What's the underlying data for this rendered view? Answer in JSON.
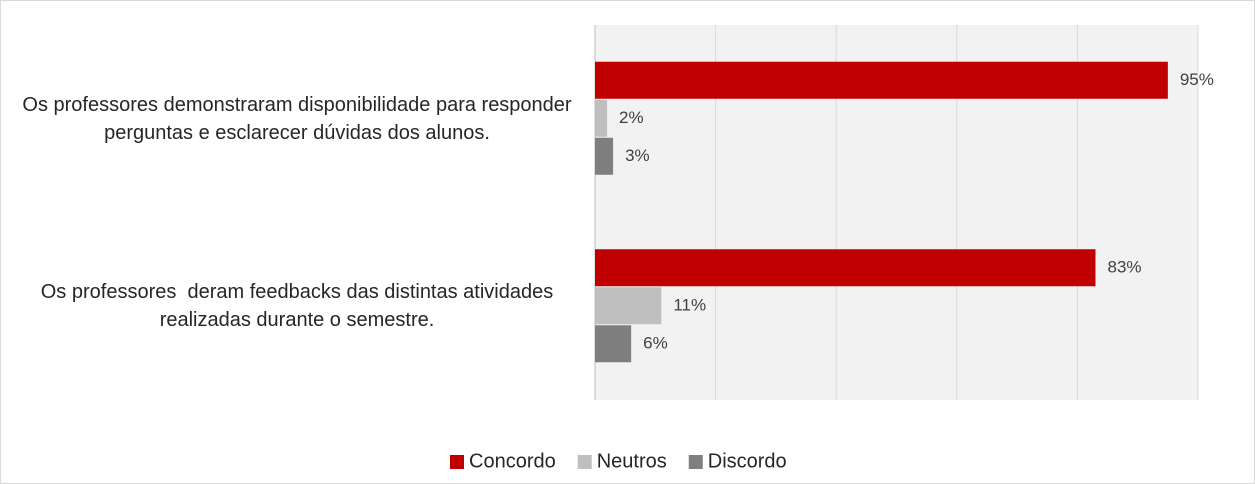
{
  "chart_data": {
    "type": "bar",
    "orientation": "horizontal",
    "categories": [
      "Os professores demonstraram disponibilidade para responder perguntas e esclarecer dúvidas dos alunos.",
      "Os professores  deram feedbacks das distintas atividades realizadas durante o semestre."
    ],
    "series": [
      {
        "name": "Concordo",
        "color": "#c00000",
        "values": [
          95,
          83
        ],
        "value_labels": [
          "95%",
          "83%"
        ]
      },
      {
        "name": "Neutros",
        "color": "#bfbfbf",
        "values": [
          2,
          11
        ],
        "value_labels": [
          "2%",
          "11%"
        ]
      },
      {
        "name": "Discordo",
        "color": "#7f7f7f",
        "values": [
          3,
          6
        ],
        "value_labels": [
          "3%",
          "6%"
        ]
      }
    ],
    "xlim": [
      0,
      100
    ],
    "xticks": [
      0,
      20,
      40,
      60,
      80,
      100
    ],
    "grid": true,
    "legend": "bottom"
  }
}
